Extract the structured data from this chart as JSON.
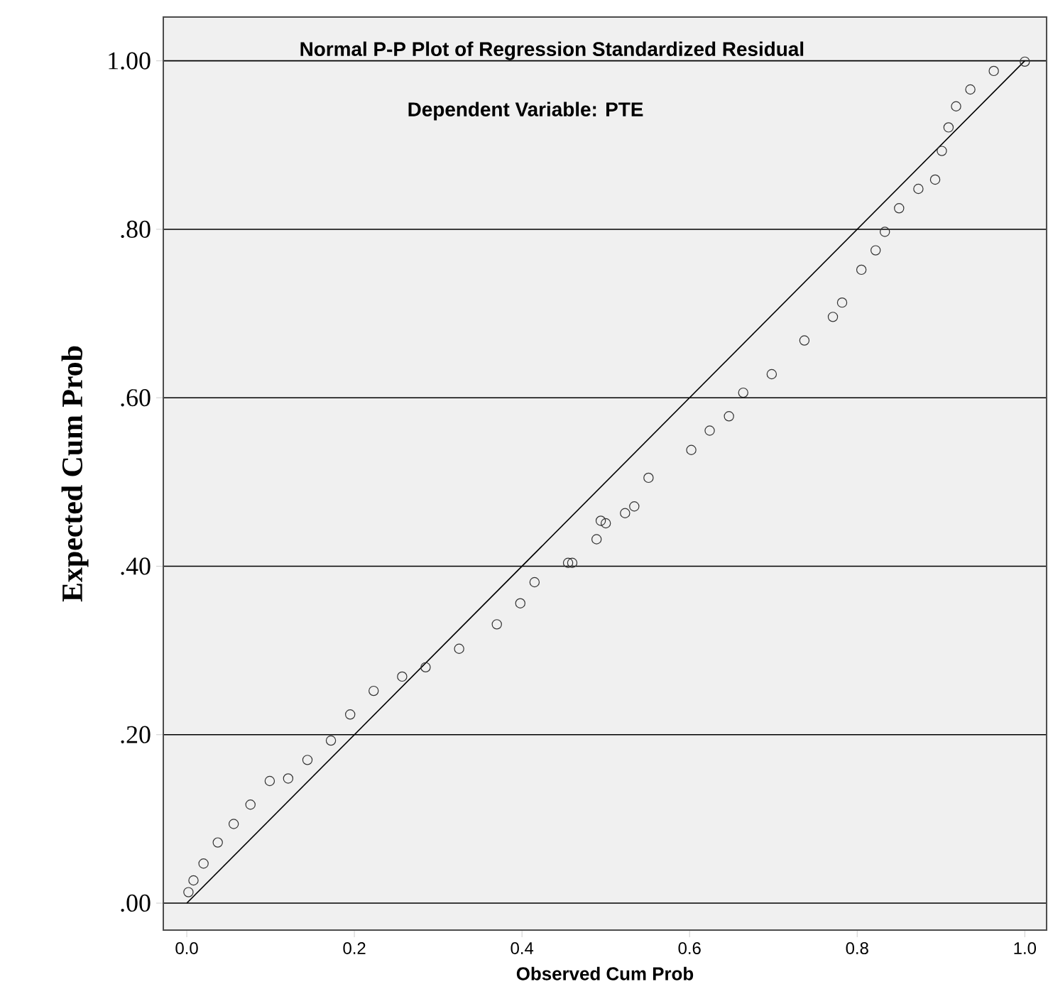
{
  "chart_data": {
    "type": "scatter",
    "title": "Normal P-P Plot of Regression Standardized Residual",
    "subtitle": "Dependent Variable: PTE",
    "xlabel": "Observed Cum Prob",
    "ylabel": "Expected Cum Prob",
    "xlim": [
      -0.028,
      1.026
    ],
    "ylim": [
      -0.032,
      1.052
    ],
    "xticks": [
      {
        "value": 0,
        "label": "0.0"
      },
      {
        "value": 0.2,
        "label": "0.2"
      },
      {
        "value": 0.4,
        "label": "0.4"
      },
      {
        "value": 0.6,
        "label": "0.6"
      },
      {
        "value": 0.8,
        "label": "0.8"
      },
      {
        "value": 1,
        "label": "1.0"
      }
    ],
    "yticks": [
      {
        "value": 0,
        "label": ".00"
      },
      {
        "value": 0.2,
        "label": ".20"
      },
      {
        "value": 0.4,
        "label": ".40"
      },
      {
        "value": 0.6,
        "label": ".60"
      },
      {
        "value": 0.8,
        "label": ".80"
      },
      {
        "value": 1,
        "label": "1.00"
      }
    ],
    "grid": "y",
    "series": [
      {
        "marker": "circle",
        "color": "#333333",
        "x": [
          0.002,
          0.008,
          0.02,
          0.037,
          0.056,
          0.076,
          0.099,
          0.121,
          0.144,
          0.172,
          0.195,
          0.223,
          0.257,
          0.285,
          0.325,
          0.37,
          0.398,
          0.415,
          0.455,
          0.46,
          0.489,
          0.494,
          0.5,
          0.523,
          0.534,
          0.551,
          0.602,
          0.624,
          0.647,
          0.664,
          0.698,
          0.737,
          0.771,
          0.782,
          0.805,
          0.822,
          0.833,
          0.85,
          0.873,
          0.893,
          0.901,
          0.909,
          0.918,
          0.935,
          0.963,
          1.0
        ],
        "values": [
          0.013,
          0.027,
          0.047,
          0.072,
          0.094,
          0.117,
          0.145,
          0.148,
          0.17,
          0.193,
          0.224,
          0.252,
          0.269,
          0.28,
          0.302,
          0.331,
          0.356,
          0.381,
          0.404,
          0.404,
          0.432,
          0.454,
          0.451,
          0.463,
          0.471,
          0.505,
          0.538,
          0.561,
          0.578,
          0.606,
          0.628,
          0.668,
          0.696,
          0.713,
          0.752,
          0.775,
          0.797,
          0.825,
          0.848,
          0.859,
          0.893,
          0.921,
          0.946,
          0.966,
          0.988,
          0.999
        ]
      },
      {
        "type": "line",
        "marker": "none",
        "color": "#000000",
        "line_style": "solid",
        "x": [
          0,
          1
        ],
        "values": [
          0,
          1
        ]
      }
    ]
  }
}
